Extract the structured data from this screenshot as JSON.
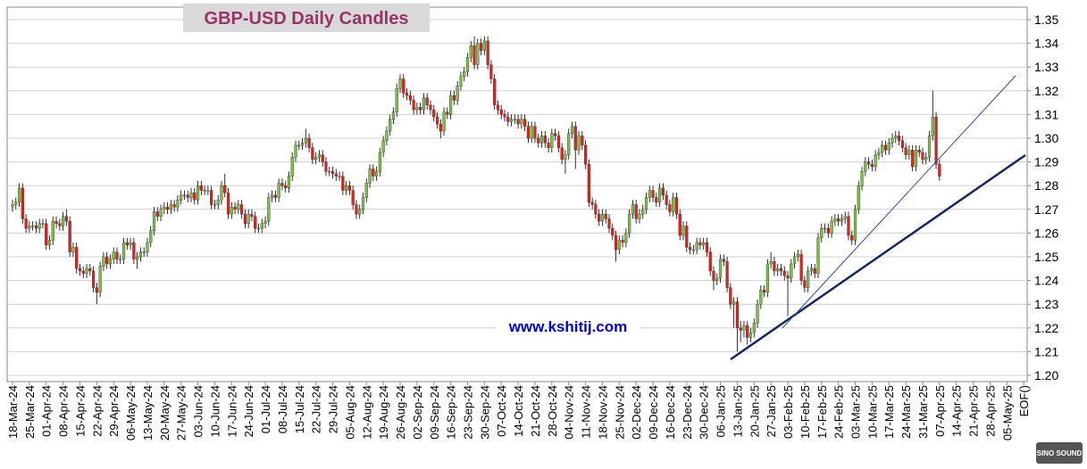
{
  "chart_data": {
    "type": "candlestick",
    "title": "GBP-USD Daily Candles",
    "watermark": "www.kshitij.com",
    "logo": "SINO SOUND",
    "up_color": "#7cc242",
    "down_color": "#e3211c",
    "grid": true,
    "ylim": [
      1.2,
      1.35
    ],
    "yticks": [
      {
        "value": 1.2,
        "label": "1.20"
      },
      1.21,
      1.22,
      1.23,
      1.24,
      1.25,
      1.26,
      1.27,
      1.28,
      1.29,
      {
        "value": 1.3,
        "label": "1.30"
      },
      1.31,
      1.32,
      1.33,
      1.34,
      1.35
    ],
    "x_tick_labels": [
      "18-Mar-24",
      "25-Mar-24",
      "01-Apr-24",
      "08-Apr-24",
      "15-Apr-24",
      "22-Apr-24",
      "29-Apr-24",
      "06-May-24",
      "13-May-24",
      "20-May-24",
      "27-May-24",
      "03-Jun-24",
      "10-Jun-24",
      "17-Jun-24",
      "24-Jun-24",
      "01-Jul-24",
      "08-Jul-24",
      "15-Jul-24",
      "22-Jul-24",
      "29-Jul-24",
      "05-Aug-24",
      "12-Aug-24",
      "19-Aug-24",
      "26-Aug-24",
      "02-Sep-24",
      "09-Sep-24",
      "16-Sep-24",
      "23-Sep-24",
      "30-Sep-24",
      "07-Oct-24",
      "14-Oct-24",
      "21-Oct-24",
      "28-Oct-24",
      "04-Nov-24",
      "11-Nov-24",
      "18-Nov-24",
      "25-Nov-24",
      "02-Dec-24",
      "09-Dec-24",
      "16-Dec-24",
      "23-Dec-24",
      "30-Dec-24",
      "06-Jan-25",
      "13-Jan-25",
      "20-Jan-25",
      "27-Jan-25",
      "03-Feb-25",
      "10-Feb-25",
      "17-Feb-25",
      "24-Feb-25",
      "03-Mar-25",
      "10-Mar-25",
      "17-Mar-25",
      "24-Mar-25",
      "31-Mar-25",
      "07-Apr-25",
      "14-Apr-25",
      "21-Apr-25",
      "28-Apr-25",
      "05-May-25",
      "EOF()"
    ],
    "open": [
      1.271,
      1.272,
      1.273,
      1.279,
      1.266,
      1.262,
      1.263,
      1.263,
      1.262,
      1.264,
      1.264,
      1.255,
      1.257,
      1.265,
      1.264,
      1.263,
      1.267,
      1.265,
      1.252,
      1.254,
      1.245,
      1.244,
      1.243,
      1.245,
      1.244,
      1.237,
      1.235,
      1.246,
      1.25,
      1.247,
      1.249,
      1.252,
      1.249,
      1.249,
      1.256,
      1.255,
      1.256,
      1.249,
      1.25,
      1.252,
      1.252,
      1.256,
      1.261,
      1.269,
      1.267,
      1.27,
      1.271,
      1.27,
      1.272,
      1.271,
      1.274,
      1.276,
      1.276,
      1.275,
      1.277,
      1.274,
      1.28,
      1.278,
      1.278,
      1.278,
      1.272,
      1.272,
      1.274,
      1.28,
      1.277,
      1.268,
      1.271,
      1.27,
      1.272,
      1.268,
      1.264,
      1.268,
      1.267,
      1.262,
      1.262,
      1.264,
      1.265,
      1.275,
      1.276,
      1.275,
      1.281,
      1.28,
      1.279,
      1.284,
      1.292,
      1.297,
      1.297,
      1.298,
      1.3,
      1.296,
      1.291,
      1.292,
      1.293,
      1.29,
      1.286,
      1.286,
      1.285,
      1.284,
      1.284,
      1.278,
      1.28,
      1.278,
      1.272,
      1.268,
      1.27,
      1.275,
      1.281,
      1.287,
      1.284,
      1.286,
      1.294,
      1.299,
      1.303,
      1.308,
      1.311,
      1.321,
      1.325,
      1.319,
      1.318,
      1.316,
      1.312,
      1.313,
      1.312,
      1.317,
      1.314,
      1.312,
      1.309,
      1.306,
      1.303,
      1.311,
      1.31,
      1.318,
      1.316,
      1.322,
      1.326,
      1.328,
      1.334,
      1.339,
      1.331,
      1.34,
      1.337,
      1.341,
      1.331,
      1.325,
      1.314,
      1.312,
      1.31,
      1.309,
      1.307,
      1.308,
      1.308,
      1.306,
      1.308,
      1.305,
      1.3,
      1.305,
      1.3,
      1.298,
      1.301,
      1.298,
      1.296,
      1.302,
      1.301,
      1.296,
      1.291,
      1.293,
      1.302,
      1.305,
      1.295,
      1.301,
      1.297,
      1.289,
      1.273,
      1.272,
      1.268,
      1.265,
      1.268,
      1.266,
      1.262,
      1.259,
      1.253,
      1.257,
      1.256,
      1.26,
      1.268,
      1.272,
      1.266,
      1.268,
      1.27,
      1.275,
      1.278,
      1.275,
      1.273,
      1.279,
      1.276,
      1.272,
      1.269,
      1.275,
      1.268,
      1.259,
      1.263,
      1.254,
      1.253,
      1.253,
      1.256,
      1.255,
      1.256,
      1.252,
      1.244,
      1.24,
      1.241,
      1.249,
      1.248,
      1.237,
      1.23,
      1.231,
      1.22,
      1.219,
      1.221,
      1.216,
      1.218,
      1.222,
      1.23,
      1.236,
      1.235,
      1.247,
      1.248,
      1.244,
      1.245,
      1.244,
      1.242,
      1.241,
      1.247,
      1.25,
      1.251,
      1.24,
      1.237,
      1.244,
      1.245,
      1.243,
      1.258,
      1.262,
      1.262,
      1.26,
      1.265,
      1.266,
      1.265,
      1.266,
      1.267,
      1.259,
      1.257,
      1.27,
      1.28,
      1.286,
      1.29,
      1.289,
      1.288,
      1.293,
      1.294,
      1.297,
      1.295,
      1.298,
      1.3,
      1.301,
      1.299,
      1.296,
      1.293,
      1.295,
      1.288,
      1.295,
      1.294,
      1.291,
      1.292,
      1.301,
      1.309,
      1.289
    ],
    "high": [
      1.274,
      1.275,
      1.281,
      1.281,
      1.268,
      1.265,
      1.265,
      1.265,
      1.266,
      1.266,
      1.266,
      1.259,
      1.267,
      1.267,
      1.266,
      1.269,
      1.27,
      1.267,
      1.256,
      1.256,
      1.247,
      1.246,
      1.247,
      1.247,
      1.246,
      1.239,
      1.248,
      1.252,
      1.252,
      1.251,
      1.254,
      1.254,
      1.251,
      1.258,
      1.258,
      1.258,
      1.258,
      1.252,
      1.254,
      1.254,
      1.258,
      1.263,
      1.271,
      1.271,
      1.272,
      1.273,
      1.273,
      1.274,
      1.274,
      1.276,
      1.278,
      1.278,
      1.278,
      1.279,
      1.279,
      1.282,
      1.282,
      1.28,
      1.28,
      1.28,
      1.274,
      1.276,
      1.282,
      1.285,
      1.279,
      1.273,
      1.273,
      1.274,
      1.274,
      1.27,
      1.27,
      1.27,
      1.269,
      1.264,
      1.266,
      1.267,
      1.277,
      1.278,
      1.278,
      1.283,
      1.283,
      1.282,
      1.286,
      1.294,
      1.299,
      1.299,
      1.3,
      1.304,
      1.302,
      1.298,
      1.294,
      1.295,
      1.295,
      1.292,
      1.288,
      1.288,
      1.287,
      1.286,
      1.286,
      1.282,
      1.282,
      1.28,
      1.274,
      1.272,
      1.277,
      1.283,
      1.289,
      1.289,
      1.288,
      1.296,
      1.301,
      1.305,
      1.31,
      1.313,
      1.323,
      1.327,
      1.327,
      1.321,
      1.32,
      1.318,
      1.315,
      1.315,
      1.319,
      1.319,
      1.316,
      1.314,
      1.311,
      1.308,
      1.313,
      1.313,
      1.32,
      1.32,
      1.324,
      1.328,
      1.33,
      1.336,
      1.341,
      1.343,
      1.342,
      1.342,
      1.343,
      1.343,
      1.333,
      1.327,
      1.316,
      1.314,
      1.312,
      1.311,
      1.31,
      1.31,
      1.31,
      1.31,
      1.31,
      1.307,
      1.307,
      1.307,
      1.302,
      1.303,
      1.303,
      1.3,
      1.304,
      1.304,
      1.303,
      1.298,
      1.295,
      1.304,
      1.307,
      1.307,
      1.303,
      1.303,
      1.299,
      1.291,
      1.275,
      1.274,
      1.27,
      1.27,
      1.27,
      1.268,
      1.264,
      1.261,
      1.259,
      1.259,
      1.262,
      1.27,
      1.274,
      1.274,
      1.27,
      1.272,
      1.277,
      1.28,
      1.28,
      1.277,
      1.281,
      1.281,
      1.278,
      1.274,
      1.277,
      1.277,
      1.27,
      1.265,
      1.265,
      1.256,
      1.255,
      1.258,
      1.258,
      1.258,
      1.258,
      1.254,
      1.246,
      1.243,
      1.251,
      1.251,
      1.25,
      1.239,
      1.233,
      1.233,
      1.223,
      1.223,
      1.223,
      1.22,
      1.224,
      1.232,
      1.238,
      1.238,
      1.249,
      1.252,
      1.25,
      1.247,
      1.247,
      1.246,
      1.244,
      1.249,
      1.252,
      1.253,
      1.253,
      1.242,
      1.246,
      1.247,
      1.247,
      1.26,
      1.264,
      1.264,
      1.264,
      1.267,
      1.268,
      1.268,
      1.268,
      1.269,
      1.269,
      1.261,
      1.272,
      1.282,
      1.288,
      1.292,
      1.292,
      1.291,
      1.295,
      1.296,
      1.299,
      1.299,
      1.3,
      1.302,
      1.303,
      1.303,
      1.301,
      1.298,
      1.297,
      1.297,
      1.297,
      1.297,
      1.296,
      1.294,
      1.303,
      1.32,
      1.311,
      1.291
    ],
    "low": [
      1.269,
      1.27,
      1.271,
      1.264,
      1.26,
      1.26,
      1.261,
      1.26,
      1.26,
      1.262,
      1.253,
      1.253,
      1.255,
      1.262,
      1.261,
      1.261,
      1.263,
      1.25,
      1.25,
      1.243,
      1.242,
      1.241,
      1.241,
      1.242,
      1.235,
      1.23,
      1.233,
      1.244,
      1.245,
      1.245,
      1.247,
      1.247,
      1.247,
      1.247,
      1.253,
      1.253,
      1.247,
      1.245,
      1.248,
      1.25,
      1.25,
      1.254,
      1.259,
      1.265,
      1.265,
      1.268,
      1.268,
      1.268,
      1.269,
      1.269,
      1.272,
      1.274,
      1.273,
      1.273,
      1.272,
      1.272,
      1.276,
      1.276,
      1.276,
      1.27,
      1.27,
      1.27,
      1.272,
      1.275,
      1.266,
      1.266,
      1.268,
      1.268,
      1.266,
      1.262,
      1.262,
      1.265,
      1.26,
      1.26,
      1.26,
      1.262,
      1.263,
      1.273,
      1.273,
      1.273,
      1.278,
      1.277,
      1.277,
      1.282,
      1.29,
      1.295,
      1.295,
      1.296,
      1.294,
      1.289,
      1.289,
      1.29,
      1.288,
      1.284,
      1.284,
      1.283,
      1.282,
      1.282,
      1.276,
      1.276,
      1.276,
      1.27,
      1.266,
      1.266,
      1.268,
      1.273,
      1.279,
      1.282,
      1.282,
      1.284,
      1.292,
      1.297,
      1.301,
      1.306,
      1.309,
      1.319,
      1.317,
      1.316,
      1.314,
      1.31,
      1.31,
      1.31,
      1.31,
      1.312,
      1.31,
      1.307,
      1.304,
      1.3,
      1.301,
      1.308,
      1.308,
      1.314,
      1.314,
      1.32,
      1.324,
      1.326,
      1.332,
      1.329,
      1.329,
      1.335,
      1.335,
      1.329,
      1.323,
      1.312,
      1.31,
      1.308,
      1.307,
      1.305,
      1.305,
      1.306,
      1.304,
      1.304,
      1.303,
      1.298,
      1.298,
      1.298,
      1.296,
      1.296,
      1.296,
      1.294,
      1.294,
      1.299,
      1.294,
      1.289,
      1.285,
      1.291,
      1.3,
      1.287,
      1.293,
      1.295,
      1.287,
      1.271,
      1.27,
      1.266,
      1.263,
      1.263,
      1.264,
      1.26,
      1.257,
      1.248,
      1.251,
      1.254,
      1.254,
      1.258,
      1.266,
      1.264,
      1.264,
      1.266,
      1.268,
      1.273,
      1.273,
      1.271,
      1.271,
      1.274,
      1.27,
      1.267,
      1.267,
      1.266,
      1.257,
      1.257,
      1.252,
      1.251,
      1.251,
      1.251,
      1.253,
      1.253,
      1.25,
      1.242,
      1.236,
      1.238,
      1.239,
      1.246,
      1.235,
      1.228,
      1.22,
      1.21,
      1.214,
      1.216,
      1.213,
      1.214,
      1.216,
      1.22,
      1.228,
      1.233,
      1.233,
      1.245,
      1.242,
      1.242,
      1.242,
      1.24,
      1.225,
      1.239,
      1.245,
      1.248,
      1.238,
      1.235,
      1.235,
      1.242,
      1.241,
      1.241,
      1.256,
      1.26,
      1.258,
      1.258,
      1.263,
      1.263,
      1.263,
      1.264,
      1.257,
      1.255,
      1.255,
      1.268,
      1.278,
      1.284,
      1.287,
      1.286,
      1.286,
      1.291,
      1.292,
      1.293,
      1.293,
      1.296,
      1.298,
      1.297,
      1.294,
      1.291,
      1.291,
      1.286,
      1.286,
      1.292,
      1.289,
      1.289,
      1.29,
      1.299,
      1.287,
      1.282
    ],
    "close": [
      1.272,
      1.273,
      1.279,
      1.266,
      1.262,
      1.263,
      1.263,
      1.262,
      1.264,
      1.264,
      1.255,
      1.257,
      1.265,
      1.264,
      1.263,
      1.267,
      1.265,
      1.252,
      1.254,
      1.245,
      1.244,
      1.243,
      1.245,
      1.244,
      1.237,
      1.235,
      1.246,
      1.25,
      1.247,
      1.249,
      1.252,
      1.249,
      1.249,
      1.256,
      1.255,
      1.256,
      1.249,
      1.25,
      1.252,
      1.252,
      1.256,
      1.261,
      1.269,
      1.267,
      1.27,
      1.271,
      1.27,
      1.272,
      1.271,
      1.274,
      1.276,
      1.276,
      1.275,
      1.277,
      1.274,
      1.28,
      1.278,
      1.278,
      1.278,
      1.272,
      1.272,
      1.274,
      1.28,
      1.277,
      1.268,
      1.271,
      1.27,
      1.272,
      1.268,
      1.264,
      1.268,
      1.267,
      1.262,
      1.262,
      1.264,
      1.265,
      1.275,
      1.276,
      1.275,
      1.281,
      1.28,
      1.279,
      1.284,
      1.292,
      1.297,
      1.297,
      1.298,
      1.3,
      1.296,
      1.291,
      1.292,
      1.293,
      1.29,
      1.286,
      1.286,
      1.285,
      1.284,
      1.284,
      1.278,
      1.28,
      1.278,
      1.272,
      1.268,
      1.27,
      1.275,
      1.281,
      1.287,
      1.284,
      1.286,
      1.294,
      1.299,
      1.303,
      1.308,
      1.311,
      1.321,
      1.325,
      1.319,
      1.318,
      1.316,
      1.312,
      1.313,
      1.312,
      1.317,
      1.314,
      1.312,
      1.309,
      1.306,
      1.303,
      1.311,
      1.31,
      1.318,
      1.316,
      1.322,
      1.326,
      1.328,
      1.334,
      1.339,
      1.331,
      1.34,
      1.337,
      1.341,
      1.331,
      1.325,
      1.314,
      1.312,
      1.31,
      1.309,
      1.307,
      1.308,
      1.308,
      1.306,
      1.308,
      1.305,
      1.3,
      1.305,
      1.3,
      1.298,
      1.301,
      1.298,
      1.296,
      1.302,
      1.301,
      1.296,
      1.291,
      1.293,
      1.302,
      1.305,
      1.295,
      1.301,
      1.297,
      1.289,
      1.273,
      1.272,
      1.268,
      1.265,
      1.268,
      1.266,
      1.262,
      1.259,
      1.253,
      1.257,
      1.256,
      1.26,
      1.268,
      1.272,
      1.266,
      1.268,
      1.27,
      1.275,
      1.278,
      1.275,
      1.273,
      1.279,
      1.276,
      1.272,
      1.269,
      1.275,
      1.268,
      1.259,
      1.263,
      1.254,
      1.253,
      1.253,
      1.256,
      1.255,
      1.256,
      1.252,
      1.244,
      1.24,
      1.241,
      1.249,
      1.248,
      1.237,
      1.23,
      1.231,
      1.22,
      1.219,
      1.221,
      1.216,
      1.218,
      1.222,
      1.23,
      1.236,
      1.235,
      1.247,
      1.248,
      1.244,
      1.245,
      1.244,
      1.242,
      1.241,
      1.247,
      1.25,
      1.251,
      1.24,
      1.237,
      1.244,
      1.245,
      1.243,
      1.258,
      1.262,
      1.262,
      1.26,
      1.265,
      1.266,
      1.265,
      1.266,
      1.267,
      1.259,
      1.257,
      1.27,
      1.28,
      1.286,
      1.29,
      1.289,
      1.288,
      1.293,
      1.294,
      1.297,
      1.295,
      1.298,
      1.3,
      1.301,
      1.299,
      1.296,
      1.293,
      1.295,
      1.288,
      1.295,
      1.294,
      1.291,
      1.292,
      1.301,
      1.309,
      1.289,
      1.284
    ]
  }
}
